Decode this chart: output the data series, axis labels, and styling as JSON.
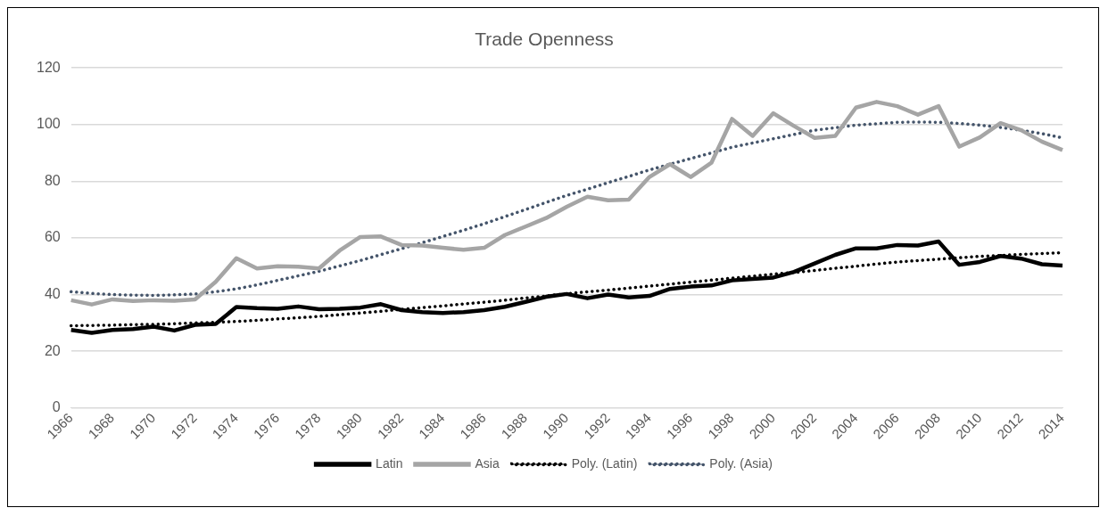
{
  "chart_data": {
    "type": "line",
    "title": "Trade Openness",
    "categories": [
      "1966",
      null,
      "1968",
      null,
      "1970",
      null,
      "1972",
      null,
      "1974",
      null,
      "1976",
      null,
      "1978",
      null,
      "1980",
      null,
      "1982",
      null,
      "1984",
      null,
      "1986",
      null,
      "1988",
      null,
      "1990",
      null,
      "1992",
      null,
      "1994",
      null,
      "1996",
      null,
      "1998",
      null,
      "2000",
      null,
      "2002",
      null,
      "2004",
      null,
      "2006",
      null,
      "2008",
      null,
      "2010",
      null,
      "2012",
      null,
      "2014"
    ],
    "series": [
      {
        "name": "Latin",
        "color": "#000000",
        "line_style": "solid",
        "values": [
          27.5,
          26.5,
          27.5,
          27.8,
          28.7,
          27.3,
          29.3,
          29.6,
          35.6,
          35.2,
          35,
          35.8,
          34.8,
          35,
          35.4,
          36.6,
          34.5,
          33.8,
          33.5,
          33.8,
          34.5,
          35.7,
          37.4,
          39.2,
          40.2,
          38.7,
          40,
          39,
          39.5,
          42,
          42.8,
          43.2,
          45,
          45.5,
          46,
          48,
          51,
          54,
          56.3,
          56.3,
          57.5,
          57.3,
          58.7,
          50.5,
          51.5,
          53.6,
          52.7,
          50.7,
          50.2
        ]
      },
      {
        "name": "Asia",
        "color": "#a5a5a5",
        "line_style": "solid",
        "values": [
          38,
          36.5,
          38.3,
          37.7,
          38,
          37.8,
          38.3,
          44.5,
          52.8,
          49.2,
          50,
          49.8,
          49.2,
          55.5,
          60.3,
          60.5,
          57.5,
          57.3,
          56.5,
          55.8,
          56.5,
          61,
          64,
          67,
          71,
          74.5,
          73.3,
          73.5,
          81.5,
          86,
          81.5,
          86.5,
          102,
          96,
          104,
          99.5,
          95.3,
          96,
          106,
          108,
          106.5,
          103.5,
          106.5,
          92.2,
          95.5,
          100.5,
          98,
          94,
          91
        ]
      },
      {
        "name": "Poly. (Latin)",
        "color": "#000000",
        "line_style": "dotted",
        "values": [
          29,
          29.1,
          29.2,
          29.4,
          29.5,
          29.7,
          30,
          30.2,
          30.5,
          30.9,
          31.4,
          31.8,
          32.3,
          32.9,
          33.5,
          34.1,
          34.8,
          35.4,
          36,
          36.7,
          37.3,
          38,
          38.8,
          39.5,
          40.3,
          41,
          41.6,
          42.3,
          43,
          43.7,
          44.4,
          45.1,
          45.8,
          46.5,
          47.2,
          47.8,
          48.5,
          49.3,
          50,
          50.8,
          51.5,
          52,
          52.5,
          53,
          53.5,
          53.8,
          54.2,
          54.5,
          54.8
        ]
      },
      {
        "name": "Poly. (Asia)",
        "color": "#44546a",
        "line_style": "dotted",
        "values": [
          41,
          40.4,
          40,
          39.8,
          39.7,
          39.9,
          40.2,
          41,
          42,
          43.4,
          45,
          46.6,
          48.2,
          50.1,
          52,
          54.1,
          56.2,
          58.3,
          60.5,
          62.7,
          65,
          67.5,
          70,
          72.5,
          75,
          77.2,
          79.5,
          81.7,
          84,
          86,
          88,
          90,
          92,
          93.5,
          95,
          96.5,
          98,
          98.9,
          99.8,
          100.3,
          100.8,
          100.9,
          100.8,
          100.4,
          99.8,
          99,
          98,
          96.8,
          95.3
        ]
      }
    ],
    "ylim": [
      0,
      120
    ],
    "yticks": [
      0,
      20,
      40,
      60,
      80,
      100,
      120
    ],
    "grid": "y",
    "legend": "bottom",
    "marker": "none"
  }
}
